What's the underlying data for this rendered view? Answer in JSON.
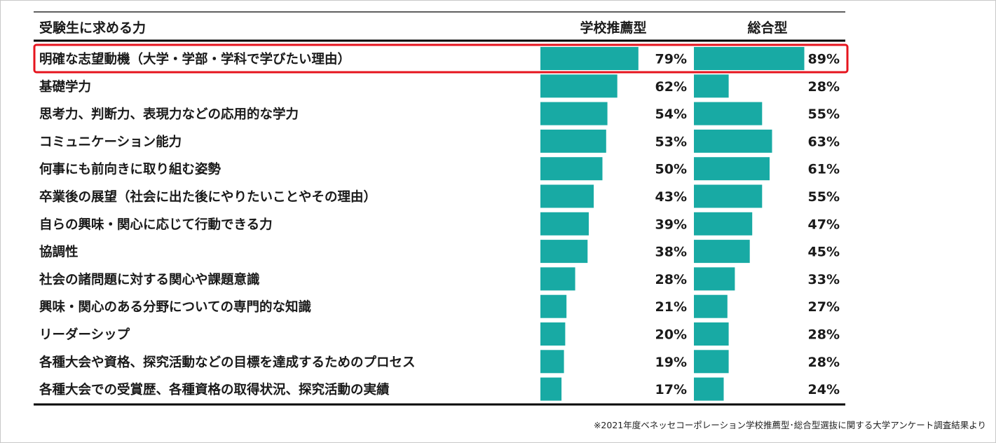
{
  "chart_data": {
    "type": "bar",
    "header": {
      "label_col": "受験生に求める力",
      "series_headers": [
        "学校推薦型",
        "総合型"
      ]
    },
    "categories": [
      "明確な志望動機（大学・学部・学科で学びたい理由）",
      "基礎学力",
      "思考力、判断力、表現力などの応用的な学力",
      "コミュニケーション能力",
      "何事にも前向きに取り組む姿勢",
      "卒業後の展望（社会に出た後にやりたいことやその理由）",
      "自らの興味・関心に応じて行動できる力",
      "協調性",
      "社会の諸問題に対する関心や課題意識",
      "興味・関心のある分野についての専門的な知識",
      "リーダーシップ",
      "各種大会や資格、探究活動などの目標を達成するためのプロセス",
      "各種大会での受賞歴、各種資格の取得状況、探究活動の実績"
    ],
    "series": [
      {
        "name": "学校推薦型",
        "values": [
          79,
          62,
          54,
          53,
          50,
          43,
          39,
          38,
          28,
          21,
          20,
          19,
          17
        ]
      },
      {
        "name": "総合型",
        "values": [
          89,
          28,
          55,
          63,
          61,
          55,
          47,
          45,
          33,
          27,
          28,
          28,
          24
        ]
      }
    ],
    "value_suffix": "%",
    "highlighted_index": 0,
    "colors": {
      "bar": "#18aaa4",
      "highlight": "#e6141e",
      "rule": "#000000"
    }
  },
  "footnote": "※2021年度ベネッセコーポレーション学校推薦型･総合型選抜に関する大学アンケート調査結果より"
}
